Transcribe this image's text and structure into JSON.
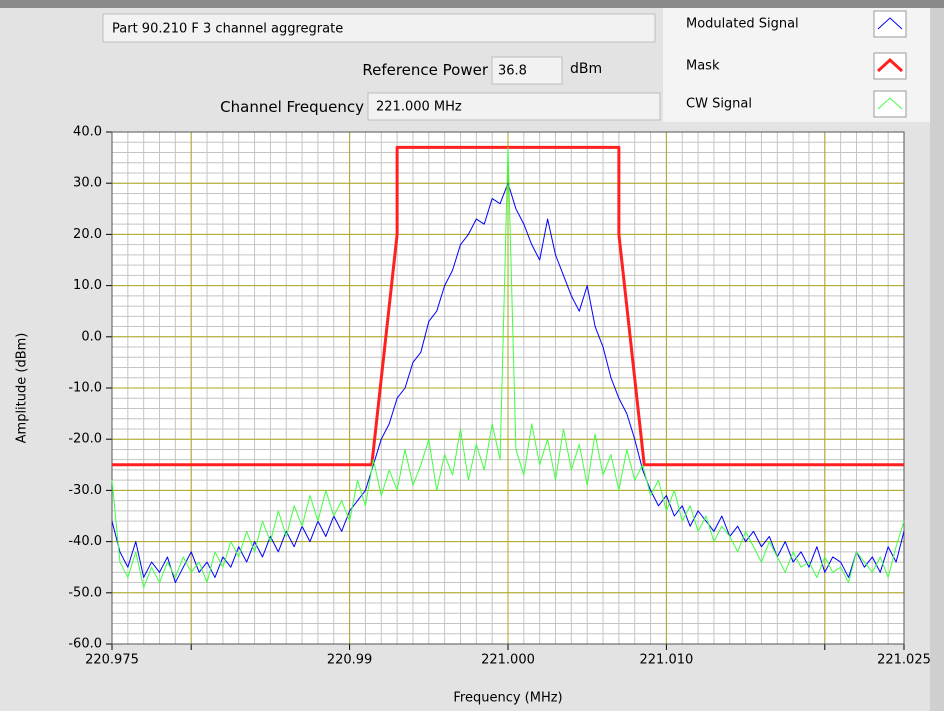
{
  "panel": {
    "description": "Part 90.210 F 3 channel aggregrate",
    "reference_power_label": "Reference Power",
    "reference_power": 36.8,
    "reference_power_unit": "dBm",
    "channel_frequency_label": "Channel Frequency",
    "channel_frequency": "221.000 MHz"
  },
  "chart_data": {
    "type": "line",
    "xlabel": "Frequency (MHz)",
    "ylabel": "Amplitude (dBm)",
    "xlim": [
      220.975,
      221.025
    ],
    "ylim": [
      -60,
      40
    ],
    "xticks": [
      220.975,
      220.99,
      {
        "value": 221,
        "label": "221.000"
      },
      {
        "value": 221.01,
        "label": "221.010"
      },
      221.025
    ],
    "xticks_unlabeled": [
      220.98,
      221.02
    ],
    "yticks": [
      {
        "value": -60,
        "label": "-60.0"
      },
      {
        "value": -50,
        "label": "-50.0"
      },
      {
        "value": -40,
        "label": "-40.0"
      },
      {
        "value": -30,
        "label": "-30.0"
      },
      {
        "value": -20,
        "label": "-20.0"
      },
      {
        "value": -10,
        "label": "-10.0"
      },
      {
        "value": 0,
        "label": "0.0"
      },
      {
        "value": 10,
        "label": "10.0"
      },
      {
        "value": 20,
        "label": "20.0"
      },
      {
        "value": 30,
        "label": "30.0"
      },
      {
        "value": 40,
        "label": "40.0"
      }
    ],
    "xminor": 0.001,
    "yminor": 2,
    "grid": true,
    "legend": "top-right",
    "x": [
      220.975,
      220.9755,
      220.976,
      220.9765,
      220.977,
      220.9775,
      220.978,
      220.9785,
      220.979,
      220.9795,
      220.98,
      220.9805,
      220.981,
      220.9815,
      220.982,
      220.9825,
      220.983,
      220.9835,
      220.984,
      220.9845,
      220.985,
      220.9855,
      220.986,
      220.9865,
      220.987,
      220.9875,
      220.988,
      220.9885,
      220.989,
      220.9895,
      220.99,
      220.9905,
      220.991,
      220.9915,
      220.992,
      220.9925,
      220.993,
      220.9935,
      220.994,
      220.9945,
      220.995,
      220.9955,
      220.996,
      220.9965,
      220.997,
      220.9975,
      220.998,
      220.9985,
      220.999,
      220.9995,
      221.0,
      221.0005,
      221.001,
      221.0015,
      221.002,
      221.0025,
      221.003,
      221.0035,
      221.004,
      221.0045,
      221.005,
      221.0055,
      221.006,
      221.0065,
      221.007,
      221.0075,
      221.008,
      221.0085,
      221.009,
      221.0095,
      221.01,
      221.0105,
      221.011,
      221.0115,
      221.012,
      221.0125,
      221.013,
      221.0135,
      221.014,
      221.0145,
      221.015,
      221.0155,
      221.016,
      221.0165,
      221.017,
      221.0175,
      221.018,
      221.0185,
      221.019,
      221.0195,
      221.02,
      221.0205,
      221.021,
      221.0215,
      221.022,
      221.0225,
      221.023,
      221.0235,
      221.024,
      221.0245,
      221.025
    ],
    "series": [
      {
        "name": "Modulated Signal",
        "color": "#0000ff",
        "width": 1,
        "values": [
          -36,
          -42,
          -45,
          -40,
          -47,
          -44,
          -46,
          -43,
          -48,
          -45,
          -42,
          -46,
          -44,
          -47,
          -43,
          -45,
          -41,
          -44,
          -40,
          -43,
          -39,
          -42,
          -38,
          -41,
          -37,
          -40,
          -36,
          -39,
          -35,
          -38,
          -34,
          -32,
          -30,
          -25,
          -20,
          -17,
          -12,
          -10,
          -5,
          -3,
          3,
          5,
          10,
          13,
          18,
          20,
          23,
          22,
          27,
          26,
          30,
          25,
          22,
          18,
          15,
          23,
          16,
          12,
          8,
          5,
          10,
          2,
          -2,
          -8,
          -12,
          -15,
          -20,
          -26,
          -30,
          -33,
          -31,
          -35,
          -33,
          -37,
          -34,
          -36,
          -38,
          -35,
          -39,
          -37,
          -40,
          -38,
          -41,
          -39,
          -43,
          -40,
          -44,
          -42,
          -45,
          -41,
          -46,
          -43,
          -44,
          -47,
          -42,
          -45,
          -43,
          -46,
          -41,
          -44,
          -38
        ]
      },
      {
        "name": "Mask",
        "color": "#ff2020",
        "width": 3,
        "x": [
          220.975,
          220.9914,
          220.993,
          220.993,
          221.007,
          221.007,
          221.0086,
          221.025
        ],
        "values": [
          -25,
          -25,
          20,
          37,
          37,
          20,
          -25,
          -25
        ]
      },
      {
        "name": "CW Signal",
        "color": "#40ff40",
        "width": 1,
        "values": [
          -28,
          -44,
          -47,
          -42,
          -49,
          -45,
          -48,
          -44,
          -47,
          -43,
          -46,
          -44,
          -48,
          -42,
          -45,
          -40,
          -43,
          -38,
          -42,
          -36,
          -40,
          -34,
          -39,
          -33,
          -37,
          -31,
          -36,
          -30,
          -35,
          -32,
          -36,
          -28,
          -33,
          -24,
          -31,
          -26,
          -30,
          -22,
          -29,
          -25,
          -20,
          -30,
          -23,
          -27,
          -18,
          -28,
          -21,
          -26,
          -17,
          -24,
          37,
          -22,
          -27,
          -17,
          -25,
          -20,
          -28,
          -18,
          -26,
          -21,
          -29,
          -19,
          -27,
          -23,
          -30,
          -22,
          -28,
          -25,
          -31,
          -28,
          -34,
          -30,
          -36,
          -33,
          -38,
          -35,
          -40,
          -37,
          -39,
          -42,
          -38,
          -41,
          -44,
          -40,
          -43,
          -46,
          -42,
          -45,
          -44,
          -47,
          -43,
          -46,
          -45,
          -48,
          -42,
          -44,
          -46,
          -43,
          -47,
          -41,
          -36
        ]
      }
    ]
  }
}
